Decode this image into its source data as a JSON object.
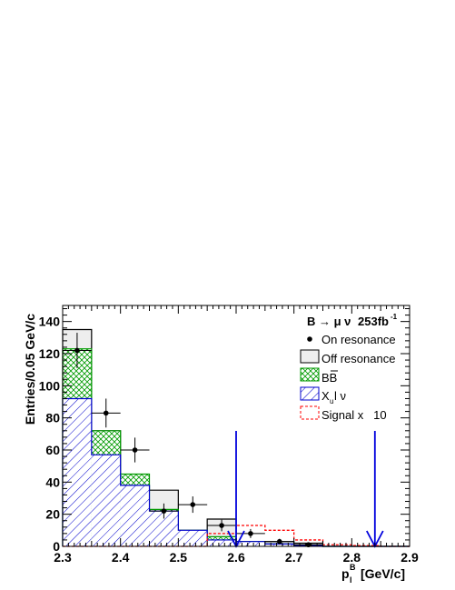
{
  "chart_data": {
    "type": "bar",
    "title": "",
    "ylabel": "Entries/0.05 GeV/c",
    "xlabel_main": "p",
    "xlabel_sub": "l",
    "xlabel_sup": "B",
    "xlabel_unit": "[GeV/c]",
    "xlim": [
      2.3,
      2.9
    ],
    "ylim": [
      0,
      150
    ],
    "xticks": [
      "2.3",
      "2.4",
      "2.5",
      "2.6",
      "2.7",
      "2.8",
      "2.9"
    ],
    "yticks": [
      "0",
      "20",
      "40",
      "60",
      "80",
      "100",
      "120",
      "140"
    ],
    "bin_edges": [
      2.3,
      2.35,
      2.4,
      2.45,
      2.5,
      2.55,
      2.6,
      2.65,
      2.7,
      2.75,
      2.8,
      2.85,
      2.9
    ],
    "stack": [
      {
        "name": "X_u l ν",
        "values": [
          92,
          57,
          38,
          22,
          10,
          4,
          3,
          1.5,
          0.5,
          0,
          0,
          0
        ],
        "color": "#0000cc",
        "fill": "hatch"
      },
      {
        "name": "BB̄",
        "values": [
          123,
          72,
          45,
          23,
          10,
          6,
          3,
          1.5,
          0.5,
          0,
          0,
          0
        ],
        "color": "#009900",
        "fill": "crosshatch"
      },
      {
        "name": "Off resonance",
        "values": [
          135,
          72,
          38,
          35,
          10,
          17,
          3,
          3,
          2,
          0,
          0,
          0
        ],
        "color": "#000000",
        "fill": "grey"
      }
    ],
    "signal": {
      "name": "Signal x 10",
      "values": [
        0,
        0,
        0,
        0,
        0,
        8,
        13,
        10,
        4,
        1,
        0.5,
        0
      ],
      "color": "#ff0000"
    },
    "on_resonance": {
      "name": "On resonance",
      "x": [
        2.325,
        2.375,
        2.425,
        2.475,
        2.525,
        2.575,
        2.625,
        2.675,
        2.725
      ],
      "y": [
        122,
        83,
        60,
        22,
        26,
        13,
        8,
        3,
        1
      ],
      "yerr": [
        11,
        9,
        7.7,
        4.7,
        5.1,
        3.6,
        2.8,
        1.7,
        1
      ]
    },
    "cut_arrows": [
      2.6,
      2.84
    ],
    "annotation": {
      "text_main": "B → μ ν",
      "text_lumi": "253fb",
      "text_sup": "-1"
    },
    "legend": {
      "placement": "top-right",
      "entries": [
        {
          "label": "On resonance"
        },
        {
          "label": "Off resonance"
        },
        {
          "label": "BB"
        },
        {
          "label": "X",
          "sub": "u",
          "rest": " l ν"
        },
        {
          "label": "Signal x   10"
        }
      ]
    }
  }
}
